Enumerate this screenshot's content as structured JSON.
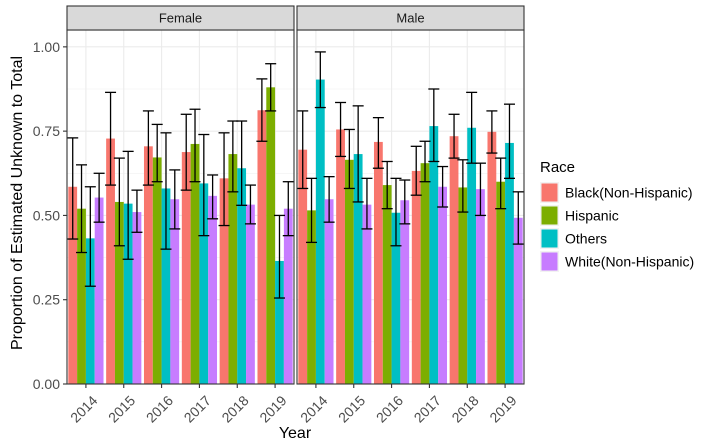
{
  "chart_data": {
    "type": "bar",
    "xlabel": "Year",
    "ylabel": "Proportion of Estimated Unknown to Total",
    "ylim": [
      0,
      1.05
    ],
    "yticks": [
      "0.00",
      "0.25",
      "0.50",
      "0.75",
      "1.00"
    ],
    "categories": [
      "2014",
      "2015",
      "2016",
      "2017",
      "2018",
      "2019"
    ],
    "legend": {
      "title": "Race",
      "position": "right"
    },
    "colors": [
      "#F8766D",
      "#7CAE00",
      "#00BFC4",
      "#C77CFF"
    ],
    "series_names": [
      "Black(Non-Hispanic)",
      "Hispanic",
      "Others",
      "White(Non-Hispanic)"
    ],
    "panels": [
      {
        "title": "Female",
        "series": [
          {
            "name": "Black(Non-Hispanic)",
            "values": [
              0.585,
              0.728,
              0.705,
              0.688,
              0.61,
              0.812
            ],
            "lower": [
              0.43,
              0.59,
              0.59,
              0.575,
              0.47,
              0.72
            ],
            "upper": [
              0.73,
              0.865,
              0.81,
              0.8,
              0.745,
              0.905
            ]
          },
          {
            "name": "Hispanic",
            "values": [
              0.52,
              0.54,
              0.672,
              0.712,
              0.682,
              0.88
            ],
            "lower": [
              0.39,
              0.41,
              0.6,
              0.6,
              0.57,
              0.81
            ],
            "upper": [
              0.65,
              0.67,
              0.77,
              0.815,
              0.78,
              0.95
            ]
          },
          {
            "name": "Others",
            "values": [
              0.432,
              0.535,
              0.58,
              0.595,
              0.64,
              0.365
            ],
            "lower": [
              0.29,
              0.37,
              0.4,
              0.44,
              0.53,
              0.255
            ],
            "upper": [
              0.585,
              0.69,
              0.745,
              0.74,
              0.78,
              0.5
            ]
          },
          {
            "name": "White(Non-Hispanic)",
            "values": [
              0.553,
              0.51,
              0.548,
              0.558,
              0.532,
              0.52
            ],
            "lower": [
              0.48,
              0.45,
              0.46,
              0.49,
              0.475,
              0.44
            ],
            "upper": [
              0.625,
              0.575,
              0.635,
              0.62,
              0.59,
              0.6
            ]
          }
        ]
      },
      {
        "title": "Male",
        "series": [
          {
            "name": "Black(Non-Hispanic)",
            "values": [
              0.695,
              0.755,
              0.718,
              0.632,
              0.735,
              0.748
            ],
            "lower": [
              0.58,
              0.675,
              0.64,
              0.56,
              0.67,
              0.685
            ],
            "upper": [
              0.81,
              0.835,
              0.79,
              0.705,
              0.8,
              0.81
            ]
          },
          {
            "name": "Hispanic",
            "values": [
              0.515,
              0.665,
              0.59,
              0.655,
              0.583,
              0.6
            ],
            "lower": [
              0.42,
              0.58,
              0.52,
              0.6,
              0.51,
              0.52
            ],
            "upper": [
              0.61,
              0.755,
              0.66,
              0.72,
              0.665,
              0.67
            ]
          },
          {
            "name": "Others",
            "values": [
              0.903,
              0.682,
              0.508,
              0.765,
              0.76,
              0.715
            ],
            "lower": [
              0.82,
              0.54,
              0.41,
              0.66,
              0.655,
              0.61
            ],
            "upper": [
              0.985,
              0.825,
              0.61,
              0.875,
              0.865,
              0.83
            ]
          },
          {
            "name": "White(Non-Hispanic)",
            "values": [
              0.548,
              0.532,
              0.545,
              0.585,
              0.578,
              0.493
            ],
            "lower": [
              0.48,
              0.46,
              0.475,
              0.525,
              0.5,
              0.415
            ],
            "upper": [
              0.615,
              0.61,
              0.605,
              0.645,
              0.655,
              0.57
            ]
          }
        ]
      }
    ]
  }
}
